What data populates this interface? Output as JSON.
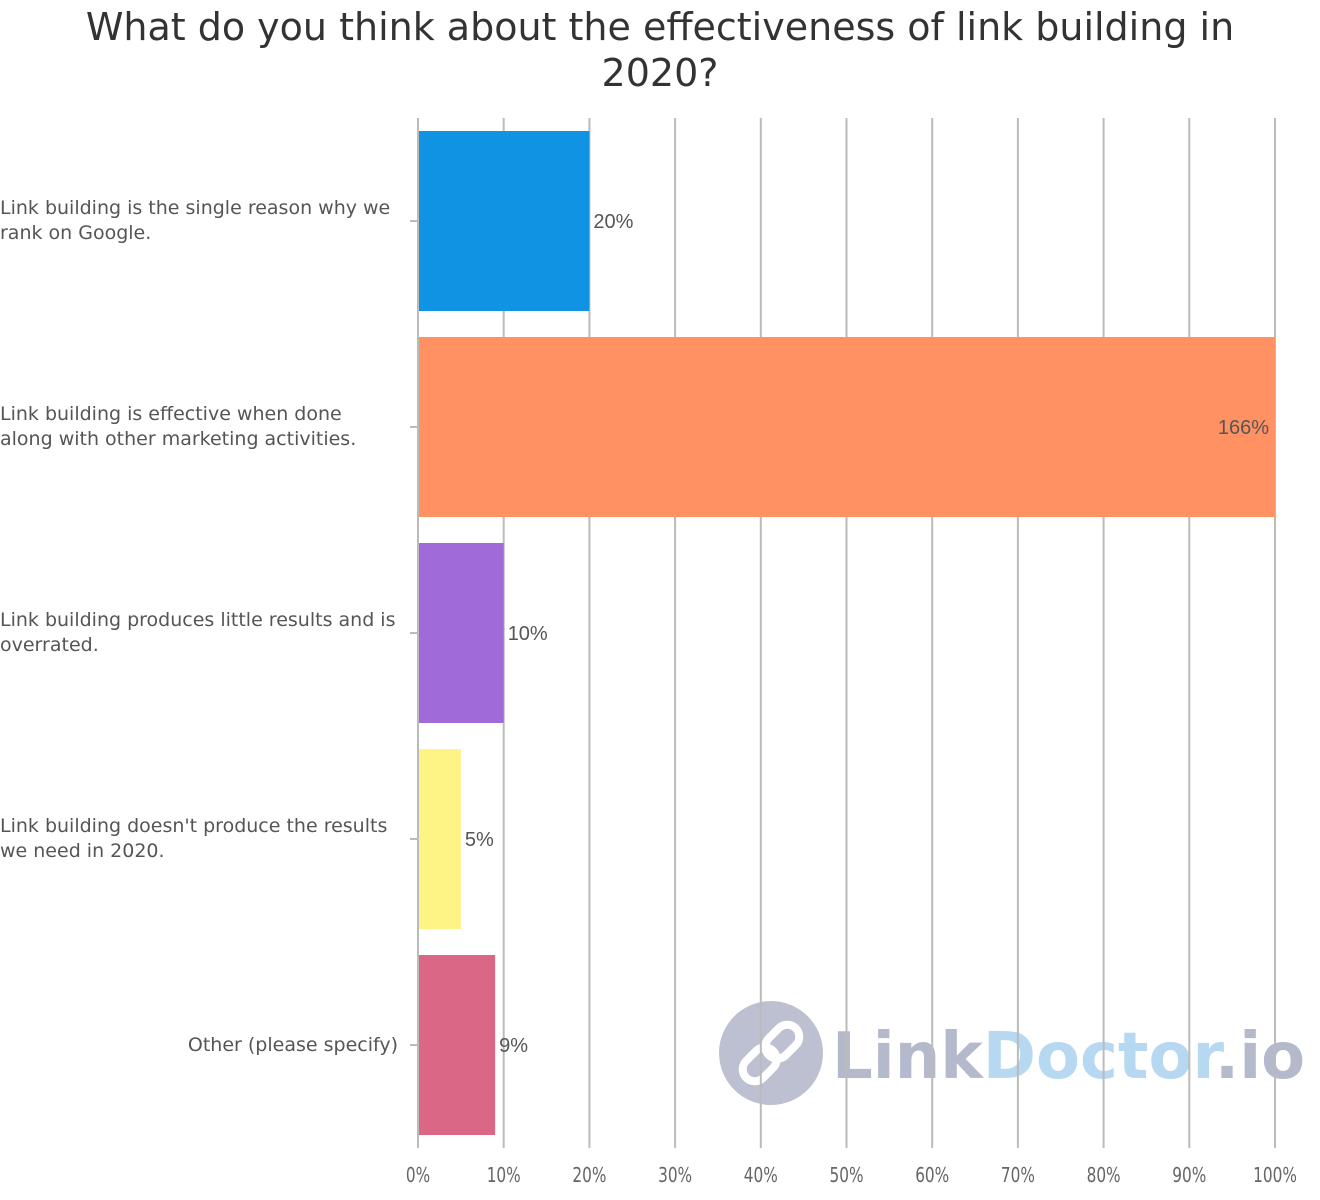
{
  "chart_data": {
    "type": "bar",
    "orientation": "horizontal",
    "title": "What do you think about the effectiveness of link building in 2020?",
    "categories": [
      "Link building is the single reason why we rank on Google.",
      "Link building is effective when done along with other marketing activities.",
      "Link building produces little results and is overrated.",
      "Link building doesn't produce the results we need in 2020.",
      "Other (please specify)"
    ],
    "values": [
      20,
      166,
      10,
      5,
      9
    ],
    "data_labels": [
      "20%",
      "166%",
      "10%",
      "5%",
      "9%"
    ],
    "colors": [
      "#1193e3",
      "#ff9163",
      "#a06ad9",
      "#fef385",
      "#db6787"
    ],
    "xlim": [
      0,
      100
    ],
    "xticks": [
      "0%",
      "10%",
      "20%",
      "30%",
      "40%",
      "50%",
      "60%",
      "70%",
      "80%",
      "90%",
      "100%"
    ],
    "grid": true,
    "watermark": "LinkDoctor.io"
  }
}
